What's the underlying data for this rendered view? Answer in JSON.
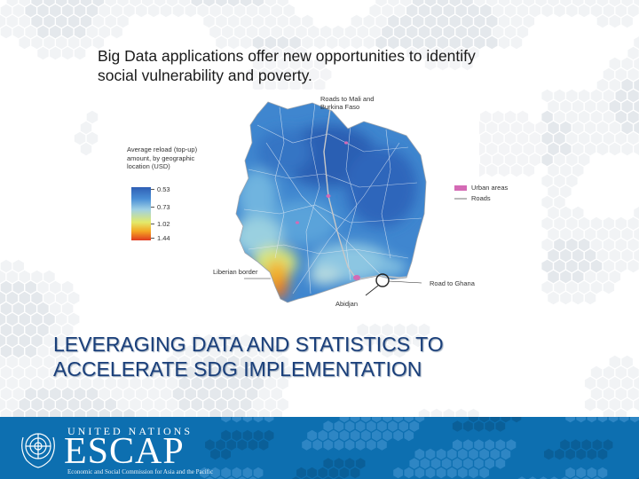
{
  "slide": {
    "intro_line1": "Big Data applications offer new opportunities to identify",
    "intro_line2": "social vulnerability and poverty.",
    "headline_line1": "LEVERAGING DATA AND STATISTICS TO",
    "headline_line2": "ACCELERATE SDG IMPLEMENTATION"
  },
  "map": {
    "legend_title_line1": "Average reload (top-up)",
    "legend_title_line2": "amount, by geographic",
    "legend_title_line3": "location (USD)",
    "scale_values": [
      "0.53",
      "0.73",
      "1.02",
      "1.44"
    ],
    "labels": {
      "roads_mali_line1": "Roads to Mali and",
      "roads_mali_line2": "Burkina Faso",
      "liberian_border": "Liberian border",
      "road_ghana": "Road to Ghana",
      "abidjan": "Abidjan"
    },
    "legend": [
      {
        "label": "Urban areas",
        "color": "#d46ab5"
      },
      {
        "label": "Roads",
        "color": "#bbbbbb"
      }
    ]
  },
  "footer": {
    "org_top": "UNITED NATIONS",
    "org_name": "ESCAP",
    "org_full": "Economic and Social Commission for Asia and the Pacific",
    "color": "#0d6fb0"
  }
}
